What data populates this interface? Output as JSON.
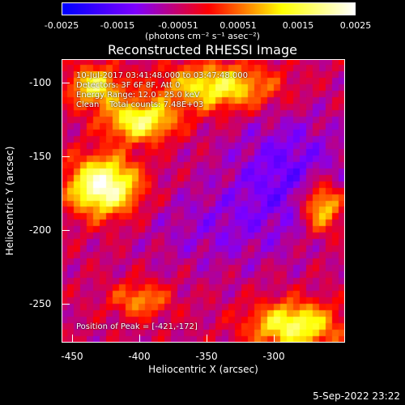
{
  "colorbar": {
    "ticks": [
      "-0.0025",
      "-0.0015",
      "-0.00051",
      "0.00051",
      "0.0015",
      "0.0025"
    ],
    "units_label": "(photons cm⁻² s⁻¹ asec⁻²)"
  },
  "title": "Reconstructed RHESSI Image",
  "annotations": {
    "time_range": "10-Jul-2017 03:41:48.000 to 03:47:48.000",
    "detectors": "Detectors: 3F 6F 8F, Att 0",
    "energy_range": "Energy Range: 12.0 - 25.0 keV",
    "method_counts": "Clean    Total counts: 7.48E+03",
    "peak_position": "Position of Peak = [-421,-172]"
  },
  "axes": {
    "xlabel": "Heliocentric X (arcsec)",
    "ylabel": "Heliocentric Y (arcsec)",
    "xticks": [
      "-450",
      "-400",
      "-350",
      "-300"
    ],
    "yticks": [
      "-100",
      "-150",
      "-200",
      "-250"
    ]
  },
  "footer": {
    "datestamp": "5-Sep-2022 23:22"
  },
  "colors": {
    "colormap": [
      "#0000ff",
      "#7f00ff",
      "#ff0000",
      "#ffff00",
      "#ffffff"
    ]
  }
}
